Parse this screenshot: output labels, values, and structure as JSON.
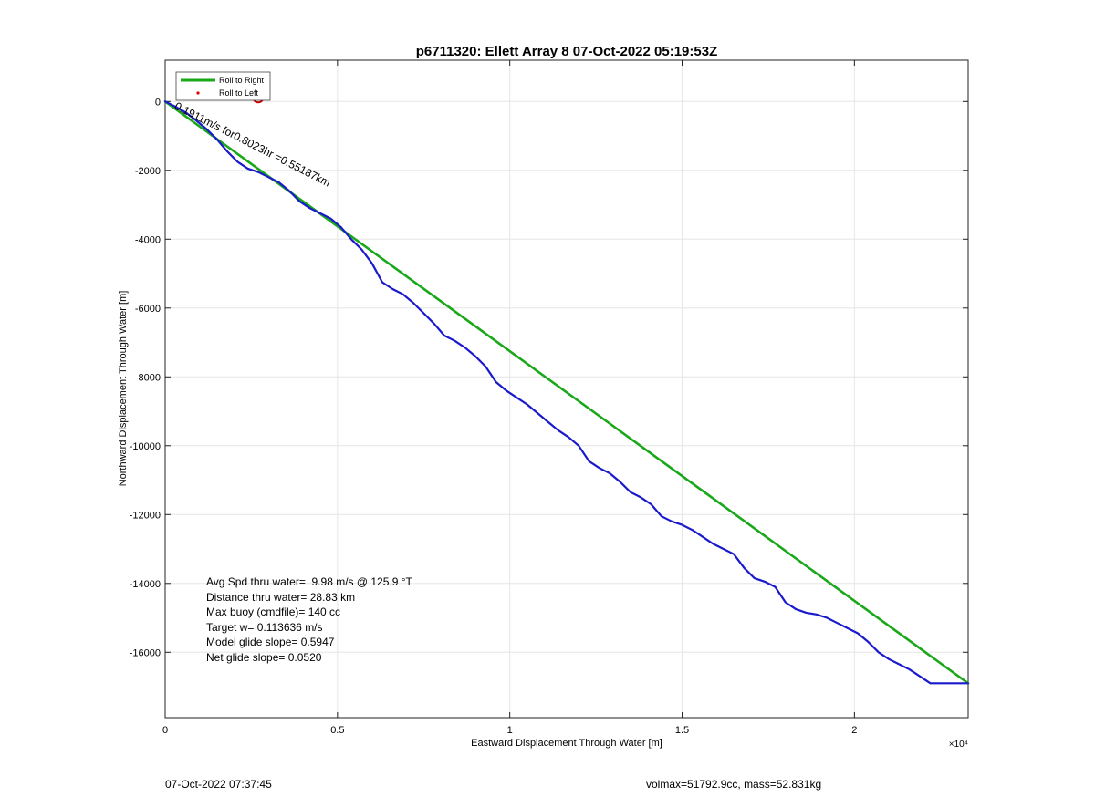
{
  "chart_data": {
    "type": "line",
    "title": "p6711320: Ellett Array 8 07-Oct-2022 05:19:53Z",
    "xlabel": "Eastward Displacement Through Water [m]",
    "ylabel": "Northward Displacement Through Water [m]",
    "x_exponent_label": "×10⁴",
    "xlim": [
      0,
      23300
    ],
    "ylim": [
      -17900,
      1200
    ],
    "x_ticks": [
      0,
      5000,
      10000,
      15000,
      20000
    ],
    "x_tick_labels": [
      "0",
      "0.5",
      "1",
      "1.5",
      "2"
    ],
    "y_ticks": [
      0,
      -2000,
      -4000,
      -6000,
      -8000,
      -10000,
      -12000,
      -14000,
      -16000
    ],
    "y_tick_labels": [
      "0",
      "-2000",
      "-4000",
      "-6000",
      "-8000",
      "-10000",
      "-12000",
      "-14000",
      "-16000"
    ],
    "grid": true,
    "legend": {
      "placement": "top-left",
      "entries": [
        {
          "label": "Roll to Right",
          "color": "#1aa81a"
        },
        {
          "label": "Roll to Left",
          "color": "#e00000"
        }
      ]
    },
    "series": [
      {
        "name": "Roll to Right",
        "color": "#1aa81a",
        "x": [
          0,
          23300
        ],
        "y": [
          0,
          -16900
        ]
      },
      {
        "color": "#1a1acc",
        "x": [
          0,
          300,
          600,
          900,
          1200,
          1500,
          1800,
          2100,
          2400,
          2700,
          3000,
          3300,
          3600,
          3900,
          4200,
          4500,
          4800,
          5100,
          5400,
          5700,
          6000,
          6300,
          6600,
          6900,
          7200,
          7500,
          7800,
          8100,
          8400,
          8700,
          9000,
          9300,
          9600,
          9900,
          10200,
          10500,
          10800,
          11100,
          11400,
          11700,
          12000,
          12300,
          12600,
          12900,
          13200,
          13500,
          13800,
          14100,
          14400,
          14700,
          15000,
          15300,
          15600,
          15900,
          16200,
          16500,
          16800,
          17100,
          17400,
          17700,
          18000,
          18300,
          18600,
          18900,
          19200,
          19500,
          19800,
          20100,
          20400,
          20700,
          21000,
          21300,
          21600,
          21900,
          22200,
          22500,
          22800,
          23300
        ],
        "y": [
          0,
          -150,
          -320,
          -550,
          -800,
          -1100,
          -1450,
          -1750,
          -1950,
          -2050,
          -2200,
          -2350,
          -2600,
          -2900,
          -3100,
          -3250,
          -3400,
          -3650,
          -4000,
          -4300,
          -4700,
          -5250,
          -5450,
          -5600,
          -5850,
          -6150,
          -6450,
          -6800,
          -6950,
          -7150,
          -7400,
          -7700,
          -8150,
          -8400,
          -8600,
          -8800,
          -9050,
          -9300,
          -9550,
          -9750,
          -10000,
          -10450,
          -10650,
          -10800,
          -11050,
          -11350,
          -11500,
          -11700,
          -12050,
          -12200,
          -12300,
          -12450,
          -12650,
          -12850,
          -13000,
          -13150,
          -13550,
          -13850,
          -13950,
          -14100,
          -14550,
          -14750,
          -14850,
          -14900,
          -15000,
          -15150,
          -15300,
          -15450,
          -15700,
          -16000,
          -16200,
          -16350,
          -16500,
          -16700,
          -16900,
          -16900,
          -16900,
          -16900
        ]
      }
    ],
    "markers": [
      {
        "type": "circle",
        "color": "#cc0000",
        "x": 2700,
        "y": 120
      }
    ],
    "inline_annotation": {
      "text": "0.1911m/s for0.8023hr =0.55187km",
      "x": 250,
      "y": -200
    },
    "stats": [
      "Avg Spd thru water=  9.98 m/s @ 125.9 °T",
      "Distance thru water= 28.83 km",
      "Max buoy (cmdfile)= 140 cc",
      "Target w= 0.113636 m/s",
      "Model glide slope= 0.5947",
      "Net glide slope= 0.0520"
    ]
  },
  "footer": {
    "timestamp": "07-Oct-2022 07:37:45",
    "vol_mass": "volmax=51792.9cc, mass=52.831kg"
  }
}
